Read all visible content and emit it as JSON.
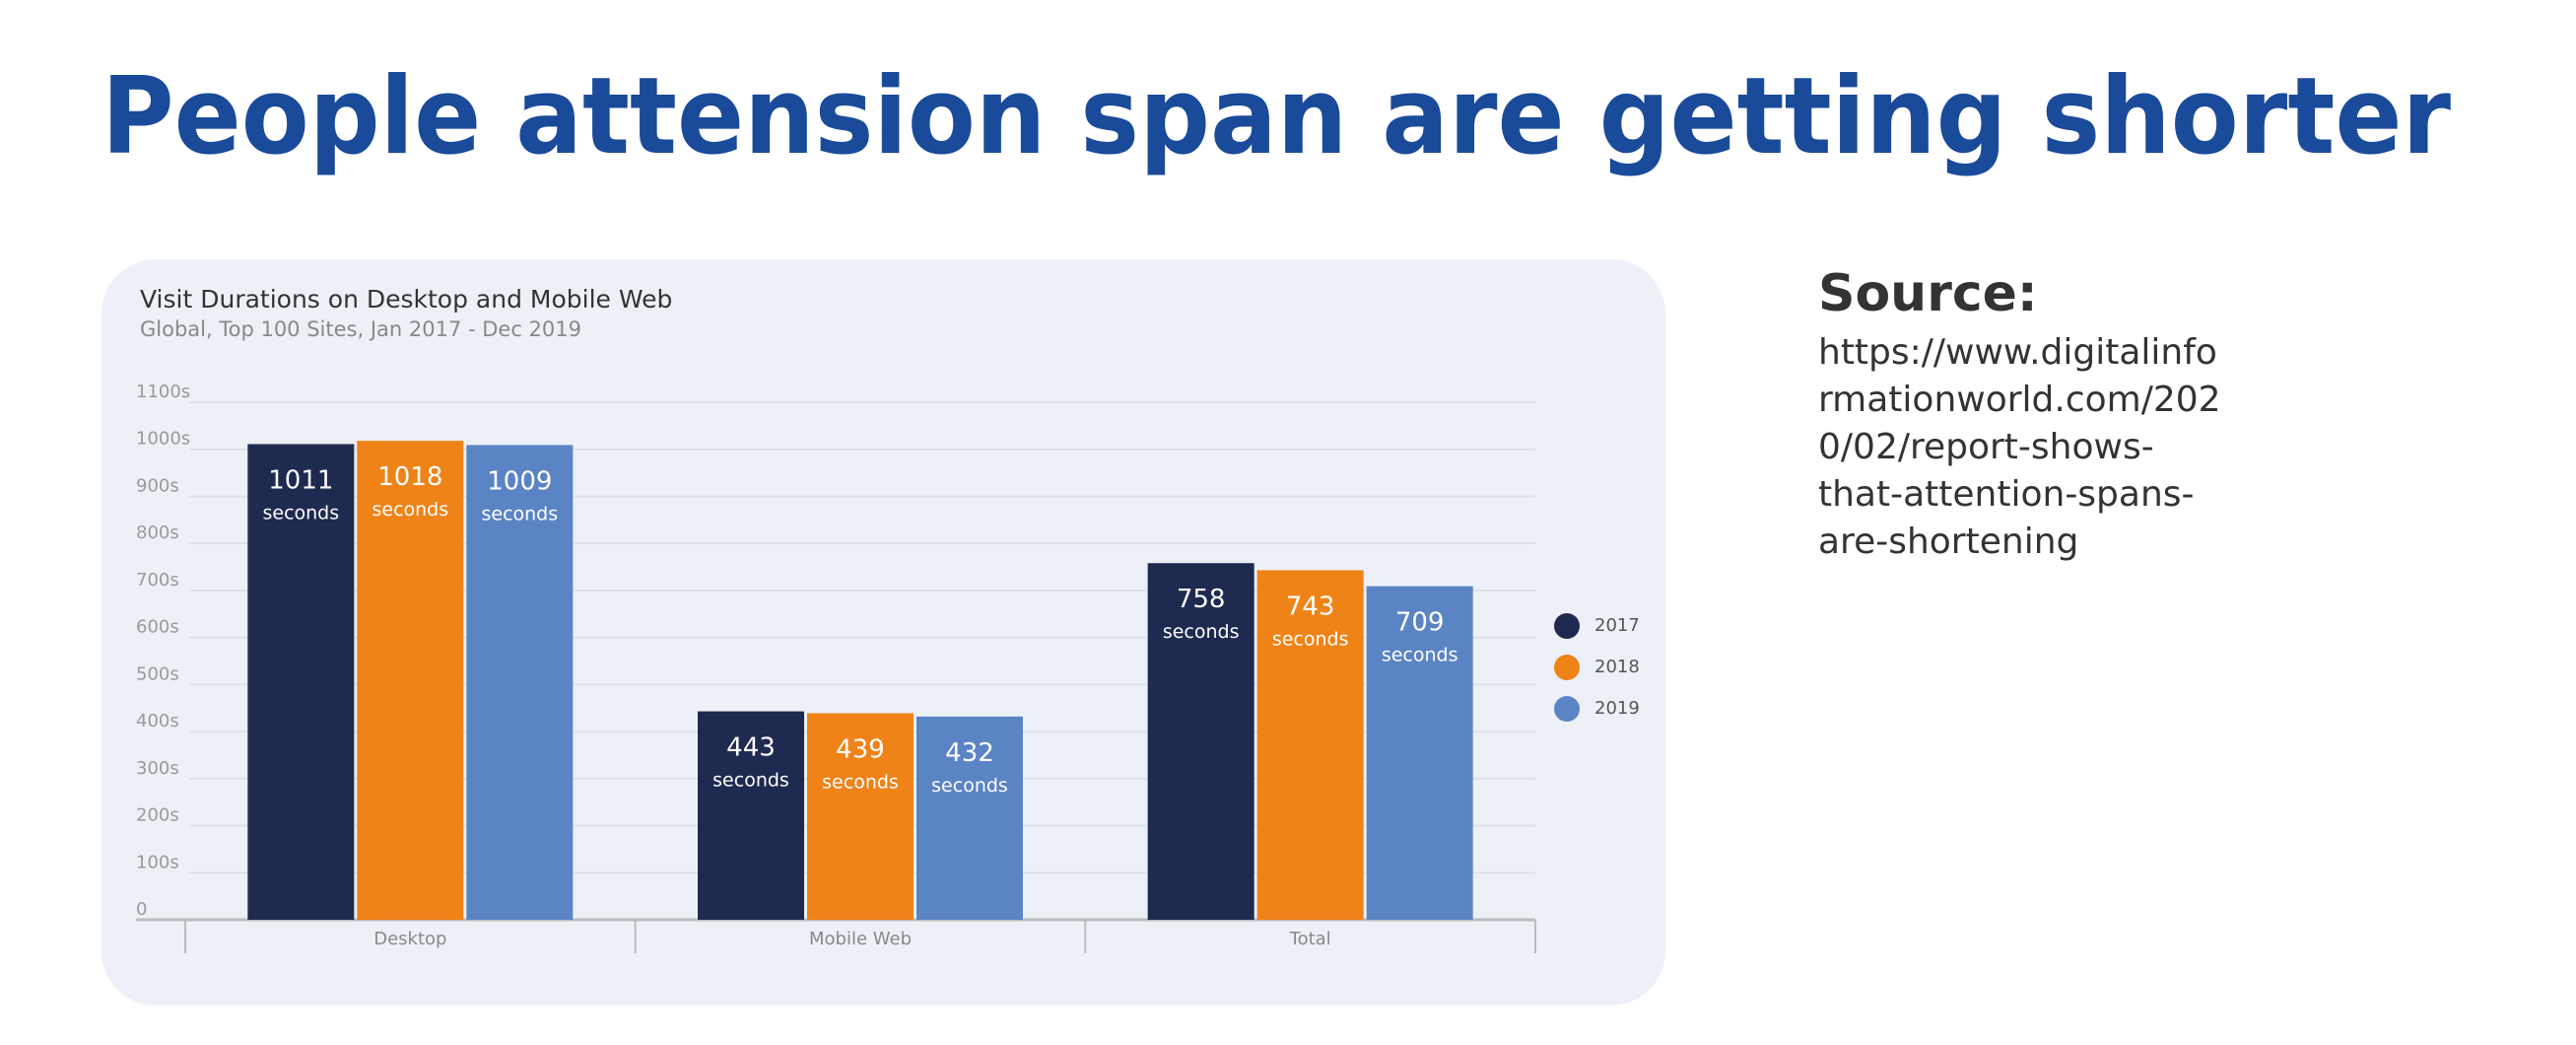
{
  "title": "People attension span are getting shorter",
  "source": {
    "heading": "Source:",
    "url": "https://www.digitalinformationworld.com/2020/02/report-shows-that-attention-spans-are-shortening"
  },
  "chart_data": {
    "type": "bar",
    "title": "Visit Durations on Desktop and Mobile Web",
    "subtitle": "Global, Top 100 Sites, Jan 2017 - Dec 2019",
    "categories": [
      "Desktop",
      "Mobile Web",
      "Total"
    ],
    "series": [
      {
        "name": "2017",
        "color": "#1f2a50",
        "values": [
          1011,
          443,
          758
        ],
        "value_labels": [
          "1011 seconds",
          "443 seconds",
          "758 seconds"
        ]
      },
      {
        "name": "2018",
        "color": "#ef8318",
        "values": [
          1018,
          439,
          743
        ],
        "value_labels": [
          "1018 seconds",
          "439 seconds",
          "743 seconds"
        ]
      },
      {
        "name": "2019",
        "color": "#5b84c4",
        "values": [
          1009,
          432,
          709
        ],
        "value_labels": [
          "1009 seconds",
          "432 seconds",
          "709 seconds"
        ]
      }
    ],
    "ylim": [
      0,
      1100
    ],
    "yticks": [
      0,
      {
        "value": 100,
        "label": "100s"
      },
      {
        "value": 200,
        "label": "200s"
      },
      {
        "value": 300,
        "label": "300s"
      },
      {
        "value": 400,
        "label": "400s"
      },
      {
        "value": 500,
        "label": "500s"
      },
      {
        "value": 600,
        "label": "600s"
      },
      {
        "value": 700,
        "label": "700s"
      },
      {
        "value": 800,
        "label": "800s"
      },
      {
        "value": 900,
        "label": "900s"
      },
      {
        "value": 1000,
        "label": "1000s"
      },
      {
        "value": 1100,
        "label": "1100s"
      }
    ],
    "grid": true,
    "legend": "right"
  }
}
